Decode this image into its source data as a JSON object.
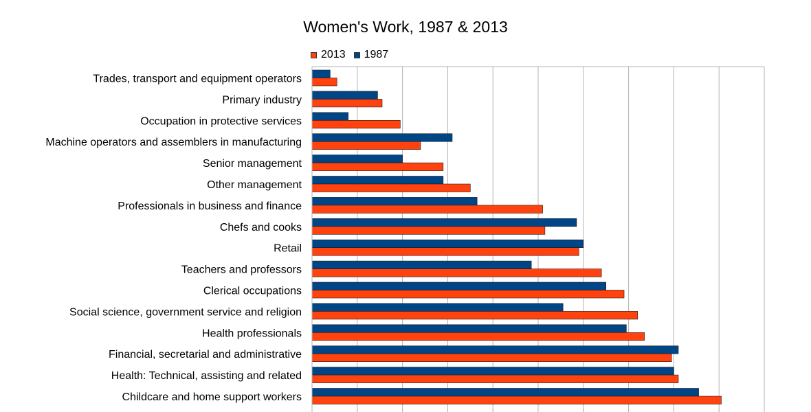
{
  "chart_data": {
    "type": "bar",
    "orientation": "horizontal",
    "title": "Women's Work, 1987 & 2013",
    "xlabel": "",
    "ylabel": "",
    "legend_position": "top-left",
    "grid": true,
    "xlim": [
      0,
      100
    ],
    "categories": [
      "Trades, transport and equipment operators",
      "Primary industry",
      "Occupation in protective services",
      "Machine operators and assemblers in manufacturing",
      "Senior management",
      "Other management",
      "Professionals in business and finance",
      "Chefs and cooks",
      "Retail",
      "Teachers and professors",
      "Clerical occupations",
      "Social science, government service and religion",
      "Health professionals",
      "Financial, secretarial and administrative",
      "Health: Technical, assisting and related",
      "Childcare and home support workers"
    ],
    "series": [
      {
        "name": "2013",
        "color": "#ff420e",
        "values": [
          5.5,
          15.5,
          19.5,
          24,
          29,
          35,
          51,
          51.5,
          59,
          64,
          69,
          72,
          73.5,
          79.5,
          81,
          90.5
        ]
      },
      {
        "name": "1987",
        "color": "#004586",
        "values": [
          4,
          14.5,
          8,
          31,
          20,
          29,
          36.5,
          58.5,
          60,
          48.5,
          65,
          55.5,
          69.5,
          81,
          80,
          85.5
        ]
      }
    ]
  }
}
